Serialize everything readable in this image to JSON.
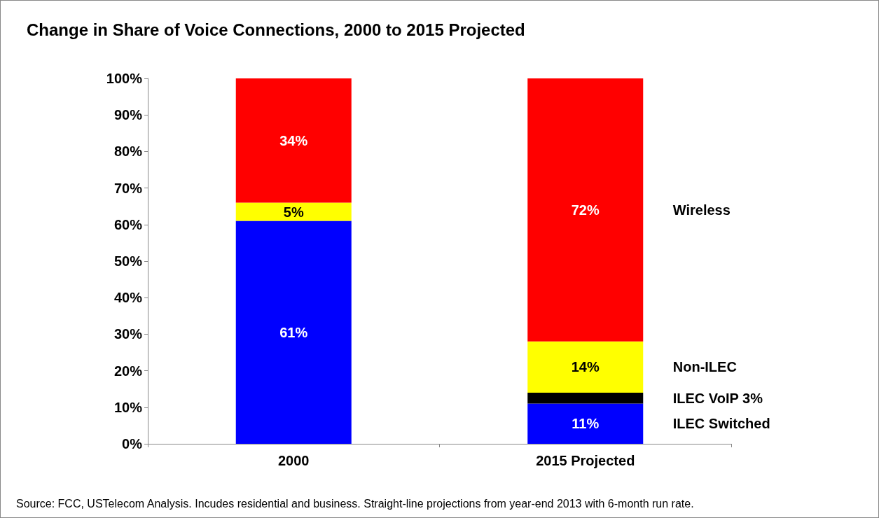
{
  "chart_data": {
    "type": "bar",
    "stacked": true,
    "title": "Change in Share of Voice Connections, 2000 to 2015 Projected",
    "categories": [
      "2000",
      "2015 Projected"
    ],
    "series": [
      {
        "name": "ILEC Switched",
        "color": "#0000ff",
        "values": [
          61,
          11
        ],
        "value_labels": [
          "61%",
          "11%"
        ]
      },
      {
        "name": "ILEC VoIP 3%",
        "color": "#000000",
        "values": [
          null,
          3
        ],
        "value_labels": [
          null,
          null
        ]
      },
      {
        "name": "Non-ILEC",
        "color": "#ffff00",
        "values": [
          5,
          14
        ],
        "value_labels": [
          "5%",
          "14%"
        ]
      },
      {
        "name": "Wireless",
        "color": "#ff0000",
        "values": [
          34,
          72
        ],
        "value_labels": [
          "34%",
          "72%"
        ]
      }
    ],
    "ylim": [
      0,
      100
    ],
    "yticks": [
      {
        "value": 0,
        "label": "0%"
      },
      {
        "value": 10,
        "label": "10%"
      },
      {
        "value": 20,
        "label": "20%"
      },
      {
        "value": 30,
        "label": "30%"
      },
      {
        "value": 40,
        "label": "40%"
      },
      {
        "value": 50,
        "label": "50%"
      },
      {
        "value": 60,
        "label": "60%"
      },
      {
        "value": 70,
        "label": "70%"
      },
      {
        "value": 80,
        "label": "80%"
      },
      {
        "value": 90,
        "label": "90%"
      },
      {
        "value": 100,
        "label": "100%"
      }
    ],
    "grid": false,
    "legend": false,
    "annotations": [
      "Source: FCC, USTelecom Analysis. Incudes residential and business. Straight-line projections from year-end 2013 with 6-month run rate."
    ]
  }
}
